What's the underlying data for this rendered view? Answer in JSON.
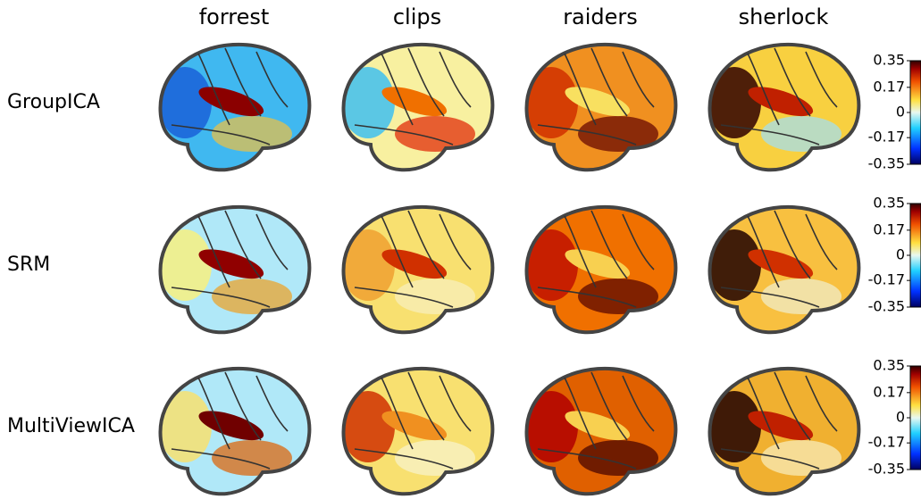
{
  "columns": [
    "forrest",
    "clips",
    "raiders",
    "sherlock"
  ],
  "rows": [
    "GroupICA",
    "SRM",
    "MultiViewICA"
  ],
  "colorbar": {
    "lim": [
      -0.35,
      0.35
    ],
    "ticks": [
      0.35,
      0.17,
      0,
      -0.17,
      -0.35
    ]
  }
}
